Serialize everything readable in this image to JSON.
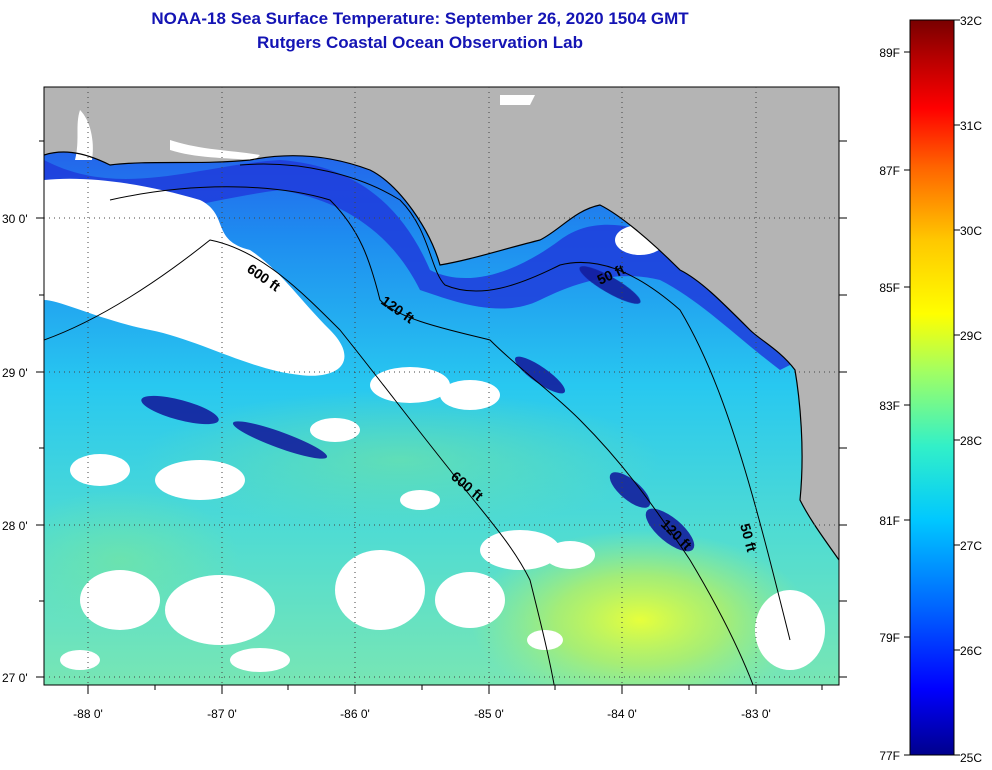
{
  "header": {
    "title": "NOAA-18 Sea Surface Temperature:  September 26, 2020 1504 GMT",
    "subtitle": "Rutgers Coastal Ocean Observation Lab"
  },
  "map": {
    "region": "Northeastern Gulf of Mexico / Florida Big Bend",
    "lon_labels": [
      "-88 0'",
      "-87 0'",
      "-86 0'",
      "-85 0'",
      "-84 0'",
      "-83 0'"
    ],
    "lat_labels": [
      "30 0'",
      "29 0'",
      "28 0'",
      "27 0'"
    ],
    "lon_range": [
      -88.3,
      -82.4
    ],
    "lat_range": [
      26.95,
      30.85
    ],
    "contours": [
      {
        "label": "600 ft"
      },
      {
        "label": "120 ft"
      },
      {
        "label": "50 ft"
      },
      {
        "label": "600 ft"
      },
      {
        "label": "50 ft"
      },
      {
        "label": "120 ft"
      }
    ],
    "land_color": "#b4b4b4",
    "cloud_color": "#ffffff",
    "land_label_color": "#000000"
  },
  "colorbar": {
    "celsius_labels": [
      "32C",
      "31C",
      "30C",
      "29C",
      "28C",
      "27C",
      "26C",
      "25C"
    ],
    "fahrenheit_labels": [
      "89F",
      "87F",
      "85F",
      "83F",
      "81F",
      "79F",
      "77F"
    ],
    "colors": [
      "#00008c",
      "#0000ff",
      "#0064ff",
      "#00c8ff",
      "#32f0c8",
      "#a0ff64",
      "#ffff00",
      "#ffc800",
      "#ff6400",
      "#ff0000",
      "#b40000",
      "#780000"
    ]
  }
}
